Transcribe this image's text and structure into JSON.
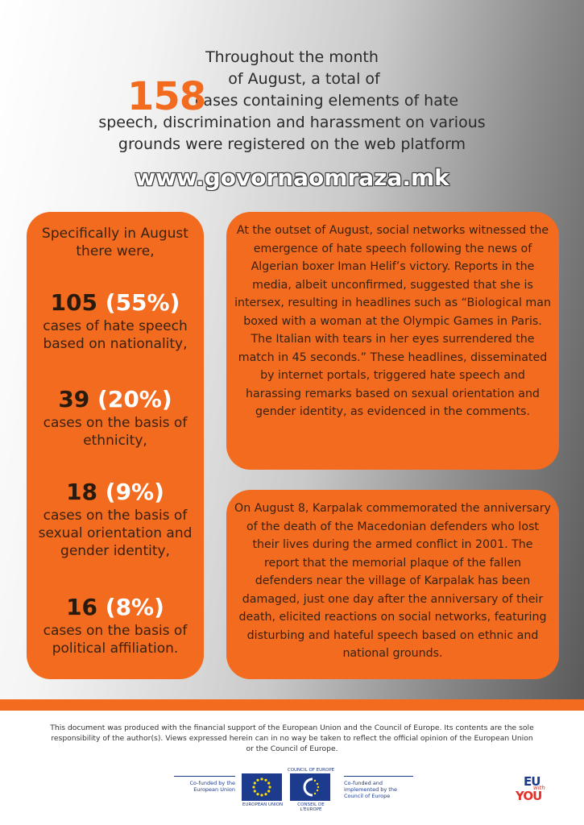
{
  "intro": {
    "line1": "Throughout the month",
    "line2": "of August, a total of",
    "count": "158",
    "line3": "cases containing elements of hate",
    "line4": "speech, discrimination and harassment on various",
    "line5": "grounds were registered on the web platform",
    "website": "www.govornaomraza.mk"
  },
  "stats_box": {
    "lead": "Specifically in August there were,",
    "items": [
      {
        "count": "105",
        "percent": "(55%)",
        "desc": "cases of hate speech based on nationality,"
      },
      {
        "count": "39",
        "percent": "(20%)",
        "desc": "cases on the basis of ethnicity,"
      },
      {
        "count": "18",
        "percent": "(9%)",
        "desc": "cases on the basis of sexual orientation and gender identity,"
      },
      {
        "count": "16",
        "percent": "(8%)",
        "desc": "cases on the basis of political affiliation."
      }
    ]
  },
  "story1": "At the outset of August, social networks witnessed the emergence of hate speech following the news of Algerian boxer Iman Helif’s victory. Reports in the media, albeit unconfirmed, suggested that she is intersex, resulting in headlines such as “Biological man boxed with a woman at the Olympic Games in Paris. The Italian with tears in her eyes surrendered the match in 45 seconds.” These headlines, disseminated by internet portals, triggered hate speech and harassing remarks based on sexual orientation and gender identity, as evidenced in the comments.",
  "story2": "On August 8, Karpalak commemorated the anniversary of the death of the Macedonian defenders who lost their lives during the armed conflict in 2001. The report that the memorial plaque of the fallen defenders near the village of Karpalak has been damaged, just one day after the anniversary of their death, elicited reactions on social networks, featuring disturbing and hateful speech based on ethnic and national grounds.",
  "footer": {
    "disclaimer": "This document was produced with the financial support of the European Union and the Council of Europe. Its contents are the sole responsibility of the author(s). Views expressed herein can in no way be taken to reflect the official opinion of the European Union or the Council of Europe.",
    "eu_cofunded": "Co-funded by the European Union",
    "eu_label": "EUROPEAN UNION",
    "coe_top": "COUNCIL OF EUROPE",
    "coe_label": "CONSEIL DE L'EUROPE",
    "coe_cofunded": "Co-funded and implemented by the Council of Europe",
    "brand_top": "EU",
    "brand_mid": "with",
    "brand_bottom": "YOU"
  },
  "colors": {
    "accent": "#f26b1f",
    "eu_blue": "#1d3b8c",
    "star_yellow": "#ffdd00"
  }
}
